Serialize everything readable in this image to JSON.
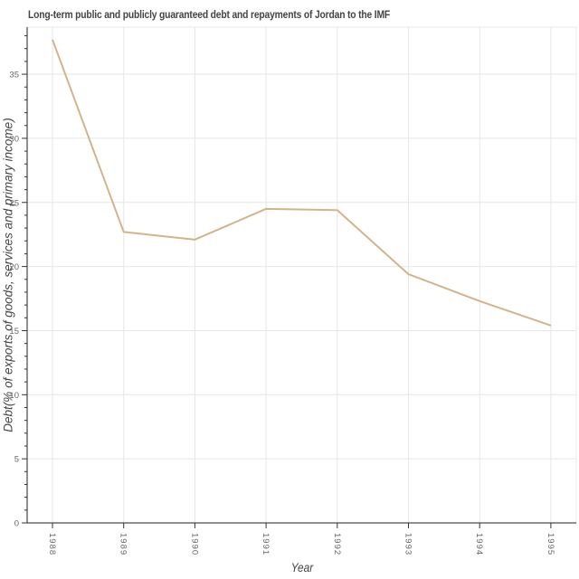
{
  "chart_data": {
    "type": "line",
    "title": "Long-term public and publicly guaranteed debt and repayments of Jordan to the IMF",
    "xlabel": "Year",
    "ylabel": "Debt(% of exports of goods, services and primary income)",
    "x": [
      "1988",
      "1989",
      "1990",
      "1991",
      "1992",
      "1993",
      "1994",
      "1995"
    ],
    "series": [
      {
        "name": "Debt",
        "color": "#d2b48c",
        "values": [
          37.7,
          22.7,
          22.1,
          24.5,
          24.4,
          19.4,
          17.3,
          15.4
        ]
      }
    ],
    "yticks": [
      0,
      5,
      10,
      15,
      20,
      25,
      30,
      35
    ],
    "ylim": [
      0,
      38.7
    ],
    "grid": true,
    "legend": "none"
  }
}
